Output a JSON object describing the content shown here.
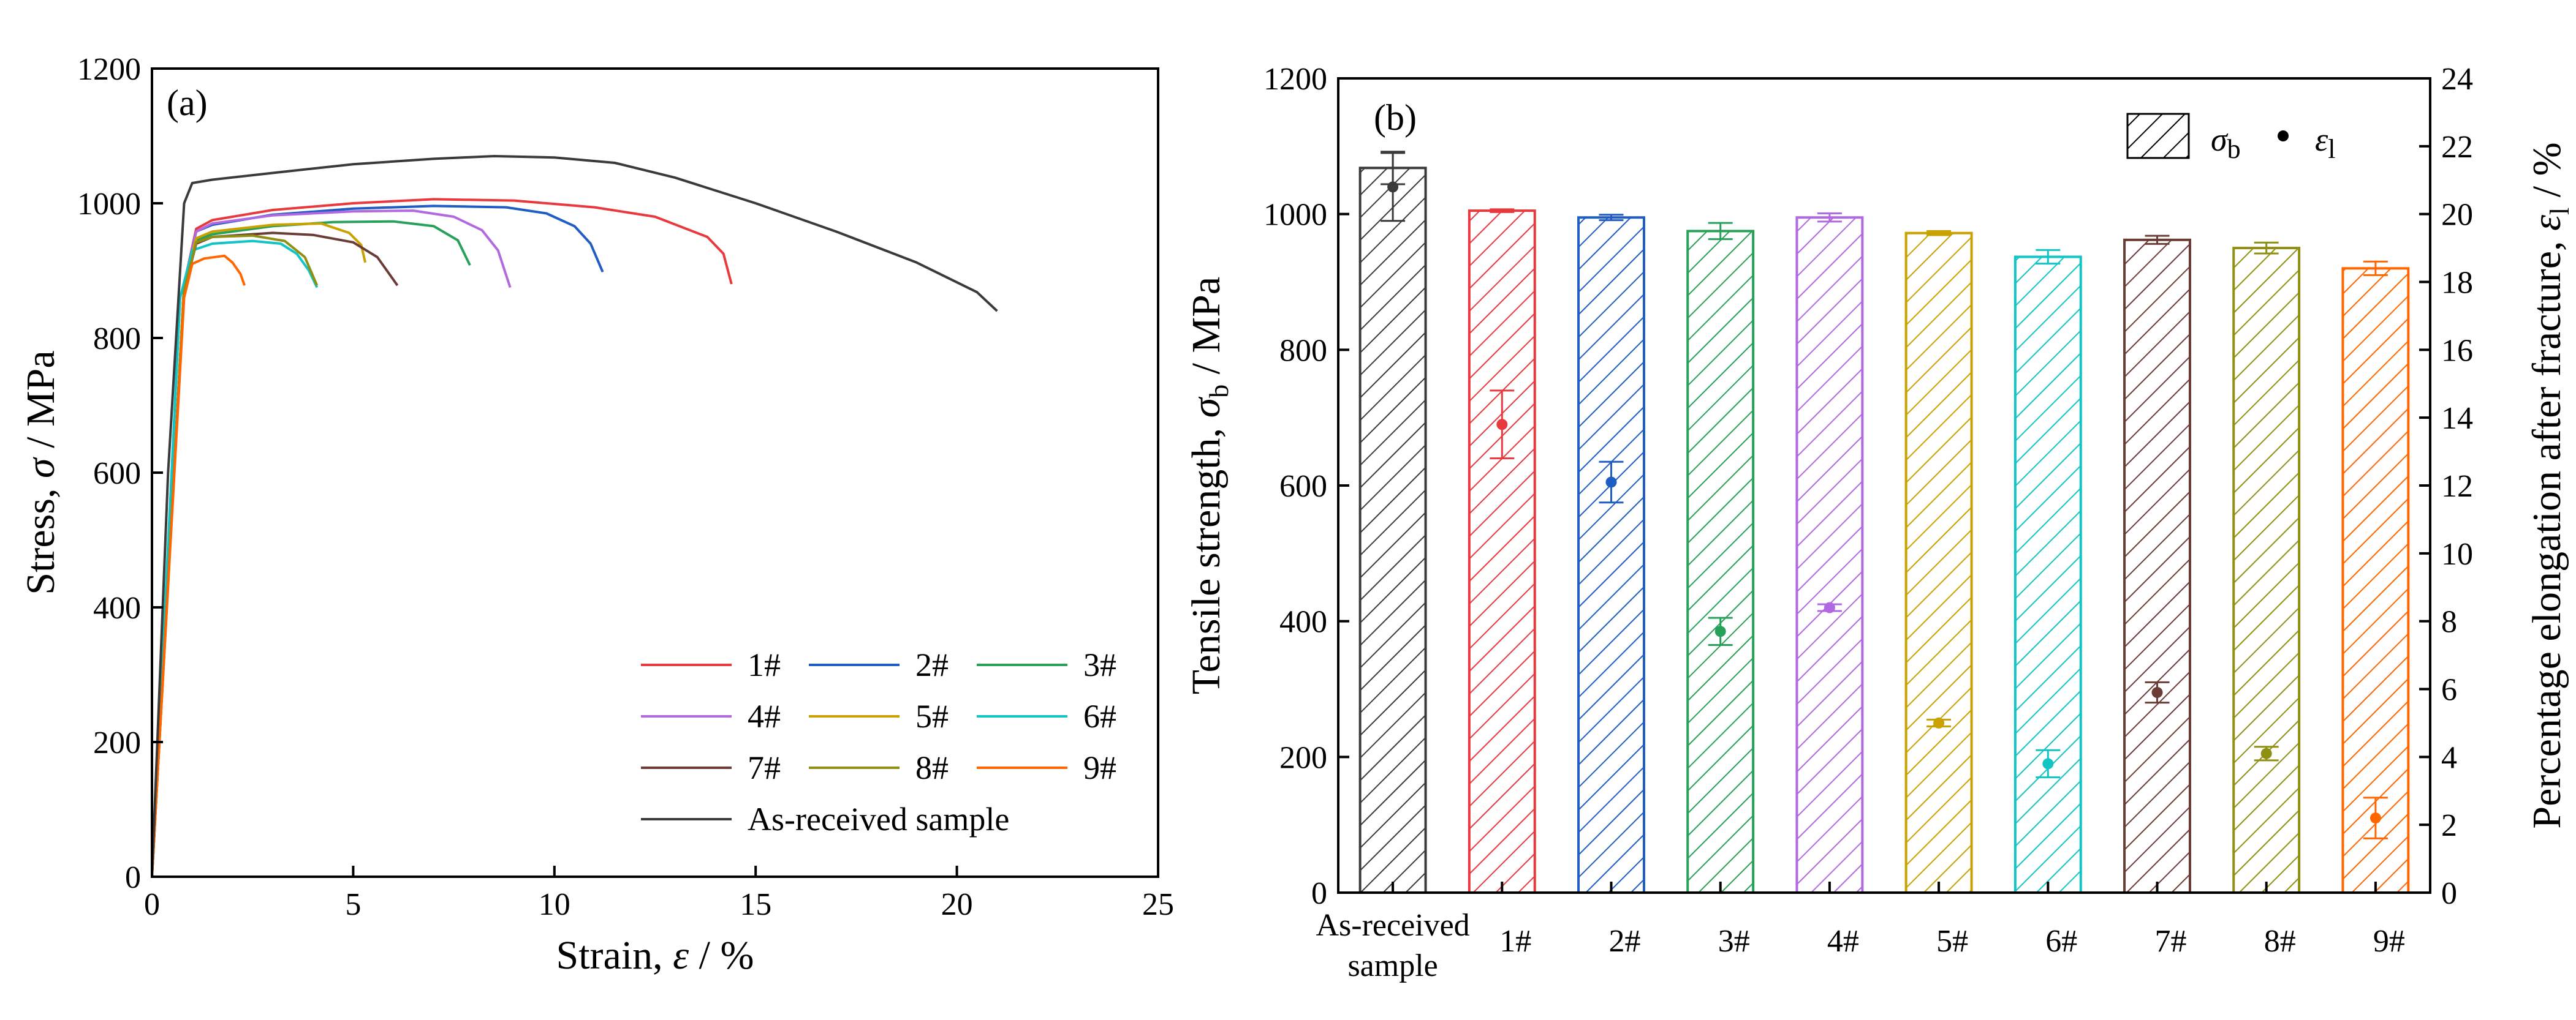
{
  "chart_data": [
    {
      "type": "line",
      "panel_label": "(a)",
      "xlabel_text": "Strain, ",
      "xlabel_symbol": "ε",
      "xlabel_unit": " / %",
      "ylabel_text": "Stress, ",
      "ylabel_symbol": "σ",
      "ylabel_unit": " / MPa",
      "xlim": [
        0,
        25
      ],
      "ylim": [
        0,
        1200
      ],
      "xticks": [
        0,
        5,
        10,
        15,
        20,
        25
      ],
      "yticks": [
        0,
        200,
        400,
        600,
        800,
        1000,
        1200
      ],
      "series": [
        {
          "name": "1#",
          "color": "#e8393f",
          "points": [
            [
              0,
              0
            ],
            [
              0.8,
              880
            ],
            [
              1.1,
              962
            ],
            [
              1.5,
              975
            ],
            [
              3,
              990
            ],
            [
              5,
              1000
            ],
            [
              7,
              1006
            ],
            [
              9,
              1004
            ],
            [
              11,
              994
            ],
            [
              12.5,
              980
            ],
            [
              13.8,
              950
            ],
            [
              14.2,
              925
            ],
            [
              14.4,
              880
            ]
          ]
        },
        {
          "name": "2#",
          "color": "#1f5cc4",
          "points": [
            [
              0,
              0
            ],
            [
              0.8,
              880
            ],
            [
              1.1,
              958
            ],
            [
              1.5,
              968
            ],
            [
              3,
              983
            ],
            [
              5,
              992
            ],
            [
              7,
              996
            ],
            [
              8.8,
              994
            ],
            [
              9.8,
              985
            ],
            [
              10.5,
              966
            ],
            [
              10.9,
              940
            ],
            [
              11.2,
              898
            ]
          ]
        },
        {
          "name": "3#",
          "color": "#27a05a",
          "points": [
            [
              0,
              0
            ],
            [
              0.8,
              870
            ],
            [
              1.1,
              945
            ],
            [
              1.5,
              954
            ],
            [
              3,
              966
            ],
            [
              4.5,
              972
            ],
            [
              6,
              973
            ],
            [
              7,
              966
            ],
            [
              7.6,
              945
            ],
            [
              7.9,
              908
            ]
          ]
        },
        {
          "name": "4#",
          "color": "#b069e0",
          "points": [
            [
              0,
              0
            ],
            [
              0.8,
              880
            ],
            [
              1.1,
              958
            ],
            [
              1.5,
              970
            ],
            [
              3,
              982
            ],
            [
              5,
              988
            ],
            [
              6.5,
              989
            ],
            [
              7.5,
              980
            ],
            [
              8.2,
              960
            ],
            [
              8.6,
              930
            ],
            [
              8.9,
              875
            ]
          ]
        },
        {
          "name": "5#",
          "color": "#c9a100",
          "points": [
            [
              0,
              0
            ],
            [
              0.8,
              880
            ],
            [
              1.1,
              948
            ],
            [
              1.5,
              958
            ],
            [
              3,
              968
            ],
            [
              4.2,
              970
            ],
            [
              4.9,
              956
            ],
            [
              5.2,
              938
            ],
            [
              5.3,
              912
            ]
          ]
        },
        {
          "name": "6#",
          "color": "#12c4c4",
          "points": [
            [
              0,
              0
            ],
            [
              0.7,
              860
            ],
            [
              1,
              930
            ],
            [
              1.5,
              940
            ],
            [
              2.5,
              944
            ],
            [
              3.2,
              940
            ],
            [
              3.6,
              925
            ],
            [
              3.9,
              900
            ],
            [
              4.1,
              875
            ]
          ]
        },
        {
          "name": "7#",
          "color": "#6b3b36",
          "points": [
            [
              0,
              0
            ],
            [
              0.8,
              870
            ],
            [
              1.1,
              940
            ],
            [
              1.5,
              950
            ],
            [
              3,
              956
            ],
            [
              4,
              953
            ],
            [
              5,
              942
            ],
            [
              5.6,
              920
            ],
            [
              6.1,
              878
            ]
          ]
        },
        {
          "name": "8#",
          "color": "#8f8f12",
          "points": [
            [
              0,
              0
            ],
            [
              0.8,
              870
            ],
            [
              1.1,
              942
            ],
            [
              1.5,
              950
            ],
            [
              2.5,
              952
            ],
            [
              3.3,
              944
            ],
            [
              3.8,
              920
            ],
            [
              4.1,
              878
            ]
          ]
        },
        {
          "name": "9#",
          "color": "#ff6600",
          "points": [
            [
              0,
              0
            ],
            [
              0.8,
              860
            ],
            [
              1,
              910
            ],
            [
              1.3,
              918
            ],
            [
              1.8,
              922
            ],
            [
              2,
              912
            ],
            [
              2.2,
              895
            ],
            [
              2.3,
              878
            ]
          ]
        },
        {
          "name": "As-received sample",
          "color": "#3a3a3a",
          "points": [
            [
              0,
              0
            ],
            [
              0.4,
              600
            ],
            [
              0.8,
              1000
            ],
            [
              1,
              1030
            ],
            [
              1.5,
              1035
            ],
            [
              3,
              1045
            ],
            [
              5,
              1058
            ],
            [
              7,
              1066
            ],
            [
              8.5,
              1070
            ],
            [
              10,
              1068
            ],
            [
              11.5,
              1060
            ],
            [
              13,
              1038
            ],
            [
              15,
              1000
            ],
            [
              17,
              958
            ],
            [
              19,
              912
            ],
            [
              20.5,
              868
            ],
            [
              21,
              840
            ]
          ]
        }
      ],
      "legend_placement": "bottom-right"
    },
    {
      "type": "bar",
      "panel_label": "(b)",
      "categories": [
        "As-received sample",
        "1#",
        "2#",
        "3#",
        "4#",
        "5#",
        "6#",
        "7#",
        "8#",
        "9#"
      ],
      "first_category_lines": [
        "As-received",
        "sample"
      ],
      "ylabel_left_text": "Tensile strength, ",
      "ylabel_left_symbol": "σ",
      "ylabel_left_sub": "b",
      "ylabel_left_unit": " / MPa",
      "ylabel_right_text": "Percentage elongation after fracture, ",
      "ylabel_right_symbol": "ε",
      "ylabel_right_sub": "l",
      "ylabel_right_unit": " / %",
      "ylim_left": [
        0,
        1200
      ],
      "ylim_right": [
        0,
        24
      ],
      "yticks_left": [
        0,
        200,
        400,
        600,
        800,
        1000,
        1200
      ],
      "yticks_right": [
        0,
        2,
        4,
        6,
        8,
        10,
        12,
        14,
        16,
        18,
        20,
        22,
        24
      ],
      "colors": [
        "#3a3a3a",
        "#e8393f",
        "#1f5cc4",
        "#27a05a",
        "#b069e0",
        "#c9a100",
        "#12c4c4",
        "#6b3b36",
        "#8f8f12",
        "#ff6600"
      ],
      "tensile_strength": [
        1068,
        1005,
        995,
        975,
        995,
        972,
        937,
        962,
        950,
        920
      ],
      "tensile_strength_err": [
        24,
        2,
        4,
        12,
        6,
        3,
        10,
        6,
        8,
        10
      ],
      "elongation": [
        20.8,
        13.8,
        12.1,
        7.7,
        8.4,
        5.0,
        3.8,
        5.9,
        4.1,
        2.2
      ],
      "elongation_err": [
        1.0,
        1.0,
        0.6,
        0.4,
        0.1,
        0.1,
        0.4,
        0.3,
        0.2,
        0.6
      ],
      "legend": {
        "bar_symbol": "σ",
        "bar_sub": "b",
        "dot_symbol": "ε",
        "dot_sub": "l"
      },
      "legend_placement": "top-right"
    }
  ]
}
